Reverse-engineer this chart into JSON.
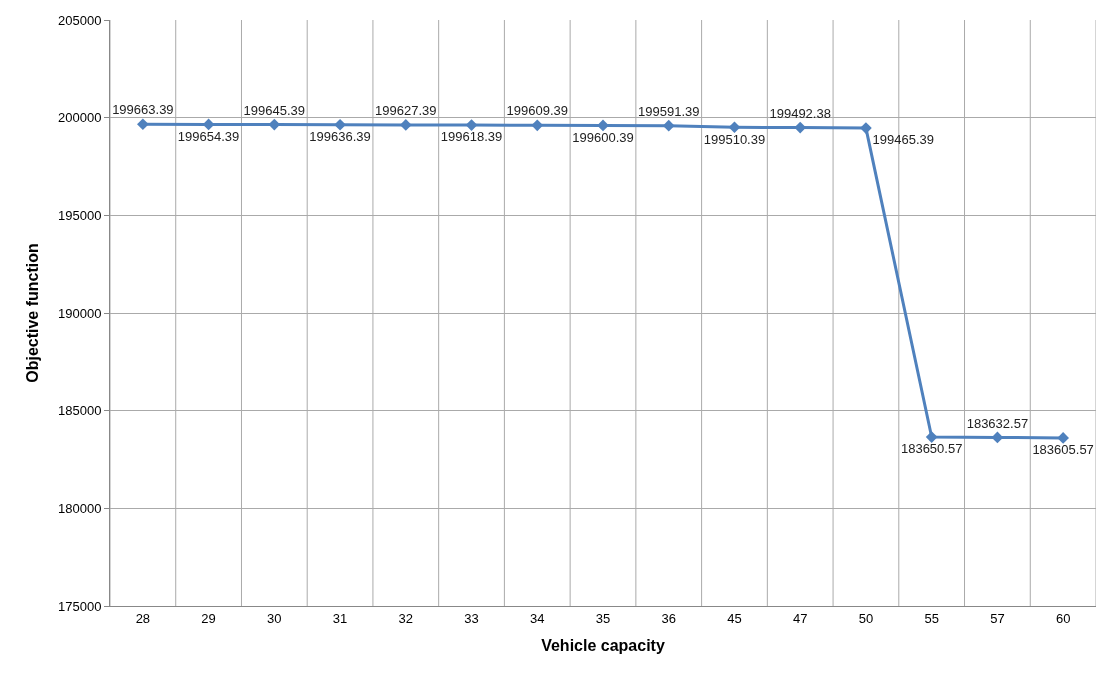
{
  "chart_data": {
    "type": "line",
    "xlabel": "Vehicle capacity",
    "ylabel": "Objective function",
    "categories": [
      "28",
      "29",
      "30",
      "31",
      "32",
      "33",
      "34",
      "35",
      "36",
      "45",
      "47",
      "50",
      "55",
      "57",
      "60"
    ],
    "series": [
      {
        "color": "#4f81bd",
        "values": [
          199663.39,
          199654.39,
          199645.39,
          199636.39,
          199627.39,
          199618.39,
          199609.39,
          199600.39,
          199591.39,
          199510.39,
          199492.38,
          199465.39,
          183650.57,
          183632.57,
          183605.57
        ]
      }
    ],
    "ylim": [
      175000,
      205000
    ],
    "yticks": [
      175000,
      180000,
      185000,
      190000,
      195000,
      200000,
      205000
    ],
    "grid": true,
    "legend": false,
    "marker": "diamond",
    "line_style": "solid",
    "data_labels": true
  }
}
